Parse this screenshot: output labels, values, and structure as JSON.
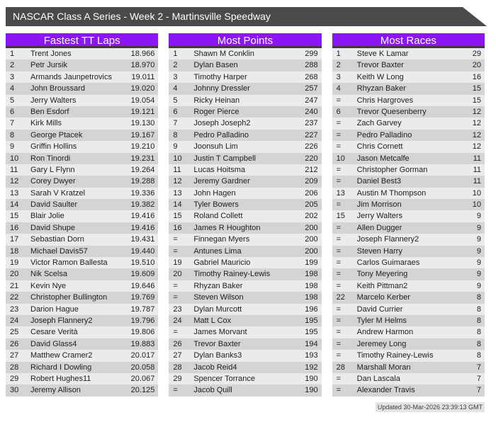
{
  "banner": {
    "title": "NASCAR Class A Series - Week 2 - Martinsville Speedway"
  },
  "colors": {
    "accent": "#8b16f3",
    "banner_bg": "#4a4a4a",
    "header_underline": "#3b3b3b",
    "row_odd": "#ebebeb",
    "row_even": "#d4d4d4"
  },
  "footer": {
    "updated": "Updated 30-Mar-2026 23:39:13 GMT"
  },
  "tables": [
    {
      "title": "Fastest TT Laps",
      "rows": [
        [
          "1",
          "Trent Jones",
          "18.966"
        ],
        [
          "2",
          "Petr Jursik",
          "18.970"
        ],
        [
          "3",
          "Armands Jaunpetrovics",
          "19.011"
        ],
        [
          "4",
          "John Broussard",
          "19.020"
        ],
        [
          "5",
          "Jerry Walters",
          "19.054"
        ],
        [
          "6",
          "Ben Esdorf",
          "19.121"
        ],
        [
          "7",
          "Kirk Mills",
          "19.130"
        ],
        [
          "8",
          "George Ptacek",
          "19.167"
        ],
        [
          "9",
          "Griffin Hollins",
          "19.210"
        ],
        [
          "10",
          "Ron Tinordi",
          "19.231"
        ],
        [
          "11",
          "Gary L Flynn",
          "19.264"
        ],
        [
          "12",
          "Corey Dwyer",
          "19.288"
        ],
        [
          "13",
          "Sarah V Kratzel",
          "19.336"
        ],
        [
          "14",
          "David Saulter",
          "19.382"
        ],
        [
          "15",
          "Blair Jolie",
          "19.416"
        ],
        [
          "16",
          "David Shupe",
          "19.416"
        ],
        [
          "17",
          "Sebastian Dorn",
          "19.431"
        ],
        [
          "18",
          "Michael Davis57",
          "19.440"
        ],
        [
          "19",
          "Victor Ramon Ballesta",
          "19.510"
        ],
        [
          "20",
          "Nik Scelsa",
          "19.609"
        ],
        [
          "21",
          "Kevin Nye",
          "19.646"
        ],
        [
          "22",
          "Christopher Bullington",
          "19.769"
        ],
        [
          "23",
          "Darion Hague",
          "19.787"
        ],
        [
          "24",
          "Joseph Flannery2",
          "19.796"
        ],
        [
          "25",
          "Cesare Verità",
          "19.806"
        ],
        [
          "26",
          "David Glass4",
          "19.883"
        ],
        [
          "27",
          "Matthew Cramer2",
          "20.017"
        ],
        [
          "28",
          "Richard I Dowling",
          "20.058"
        ],
        [
          "29",
          "Robert Hughes11",
          "20.067"
        ],
        [
          "30",
          "Jeremy Allison",
          "20.125"
        ]
      ]
    },
    {
      "title": "Most Points",
      "rows": [
        [
          "1",
          "Shawn M Conklin",
          "299"
        ],
        [
          "2",
          "Dylan Basen",
          "288"
        ],
        [
          "3",
          "Timothy Harper",
          "268"
        ],
        [
          "4",
          "Johnny Dressler",
          "257"
        ],
        [
          "5",
          "Ricky Heinan",
          "247"
        ],
        [
          "6",
          "Roger Pierce",
          "240"
        ],
        [
          "7",
          "Joseph Joseph2",
          "237"
        ],
        [
          "8",
          "Pedro Palladino",
          "227"
        ],
        [
          "9",
          "Joonsuh Lim",
          "226"
        ],
        [
          "10",
          "Justin T Campbell",
          "220"
        ],
        [
          "11",
          "Lucas Hoitsma",
          "212"
        ],
        [
          "12",
          "Jeremy Gardner",
          "209"
        ],
        [
          "13",
          "John Hagen",
          "206"
        ],
        [
          "14",
          "Tyler Bowers",
          "205"
        ],
        [
          "15",
          "Roland Collett",
          "202"
        ],
        [
          "16",
          "James R Houghton",
          "200"
        ],
        [
          "=",
          "Finnegan Myers",
          "200"
        ],
        [
          "=",
          "Antunes Lima",
          "200"
        ],
        [
          "19",
          "Gabriel Mauricio",
          "199"
        ],
        [
          "20",
          "Timothy Rainey-Lewis",
          "198"
        ],
        [
          "=",
          "Rhyzan Baker",
          "198"
        ],
        [
          "=",
          "Steven Wilson",
          "198"
        ],
        [
          "23",
          "Dylan Murcott",
          "196"
        ],
        [
          "24",
          "Matt L Cox",
          "195"
        ],
        [
          "=",
          "James Morvant",
          "195"
        ],
        [
          "26",
          "Trevor Baxter",
          "194"
        ],
        [
          "27",
          "Dylan Banks3",
          "193"
        ],
        [
          "28",
          "Jacob Reid4",
          "192"
        ],
        [
          "29",
          "Spencer Torrance",
          "190"
        ],
        [
          "=",
          "Jacob Quill",
          "190"
        ]
      ]
    },
    {
      "title": "Most Races",
      "rows": [
        [
          "1",
          "Steve K Lamar",
          "29"
        ],
        [
          "2",
          "Trevor Baxter",
          "20"
        ],
        [
          "3",
          "Keith W Long",
          "16"
        ],
        [
          "4",
          "Rhyzan Baker",
          "15"
        ],
        [
          "=",
          "Chris Hargroves",
          "15"
        ],
        [
          "6",
          "Trevor Quesenberry",
          "12"
        ],
        [
          "=",
          "Zach Garvey",
          "12"
        ],
        [
          "=",
          "Pedro Palladino",
          "12"
        ],
        [
          "=",
          "Chris Cornett",
          "12"
        ],
        [
          "10",
          "Jason Metcalfe",
          "11"
        ],
        [
          "=",
          "Christopher Gorman",
          "11"
        ],
        [
          "=",
          "Daniel Best3",
          "11"
        ],
        [
          "13",
          "Austin M Thompson",
          "10"
        ],
        [
          "=",
          "Jim Morrison",
          "10"
        ],
        [
          "15",
          "Jerry Walters",
          "9"
        ],
        [
          "=",
          "Allen Dugger",
          "9"
        ],
        [
          "=",
          "Joseph Flannery2",
          "9"
        ],
        [
          "=",
          "Steven Harry",
          "9"
        ],
        [
          "=",
          "Carlos Guimaraes",
          "9"
        ],
        [
          "=",
          "Tony Meyering",
          "9"
        ],
        [
          "=",
          "Keith Pittman2",
          "9"
        ],
        [
          "22",
          "Marcelo Kerber",
          "8"
        ],
        [
          "=",
          "David Currier",
          "8"
        ],
        [
          "=",
          "Tyler M Helms",
          "8"
        ],
        [
          "=",
          "Andrew Harmon",
          "8"
        ],
        [
          "=",
          "Jeremey Long",
          "8"
        ],
        [
          "=",
          "Timothy Rainey-Lewis",
          "8"
        ],
        [
          "28",
          "Marshall Moran",
          "7"
        ],
        [
          "=",
          "Dan Lascala",
          "7"
        ],
        [
          "=",
          "Alexander Travis",
          "7"
        ]
      ]
    }
  ]
}
